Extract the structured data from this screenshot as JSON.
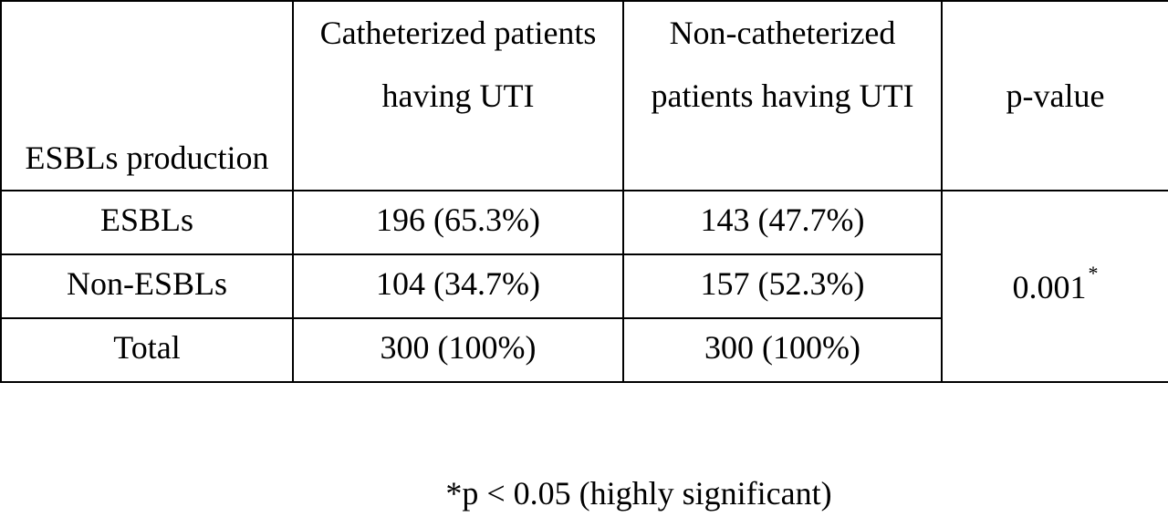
{
  "table": {
    "headers": [
      "ESBLs production",
      "Catheterized patients having UTI",
      "Non-catheterized patients having UTI",
      "p-value"
    ],
    "rows": [
      {
        "label": "ESBLs",
        "catheterized": "196 (65.3%)",
        "non_catheterized": "143 (47.7%)"
      },
      {
        "label": "Non-ESBLs",
        "catheterized": "104 (34.7%)",
        "non_catheterized": "157 (52.3%)"
      },
      {
        "label": "Total",
        "catheterized": "300 (100%)",
        "non_catheterized": "300 (100%)"
      }
    ],
    "p_value": "0.001",
    "p_value_mark": "*"
  },
  "footnote": "*p < 0.05 (highly significant)"
}
